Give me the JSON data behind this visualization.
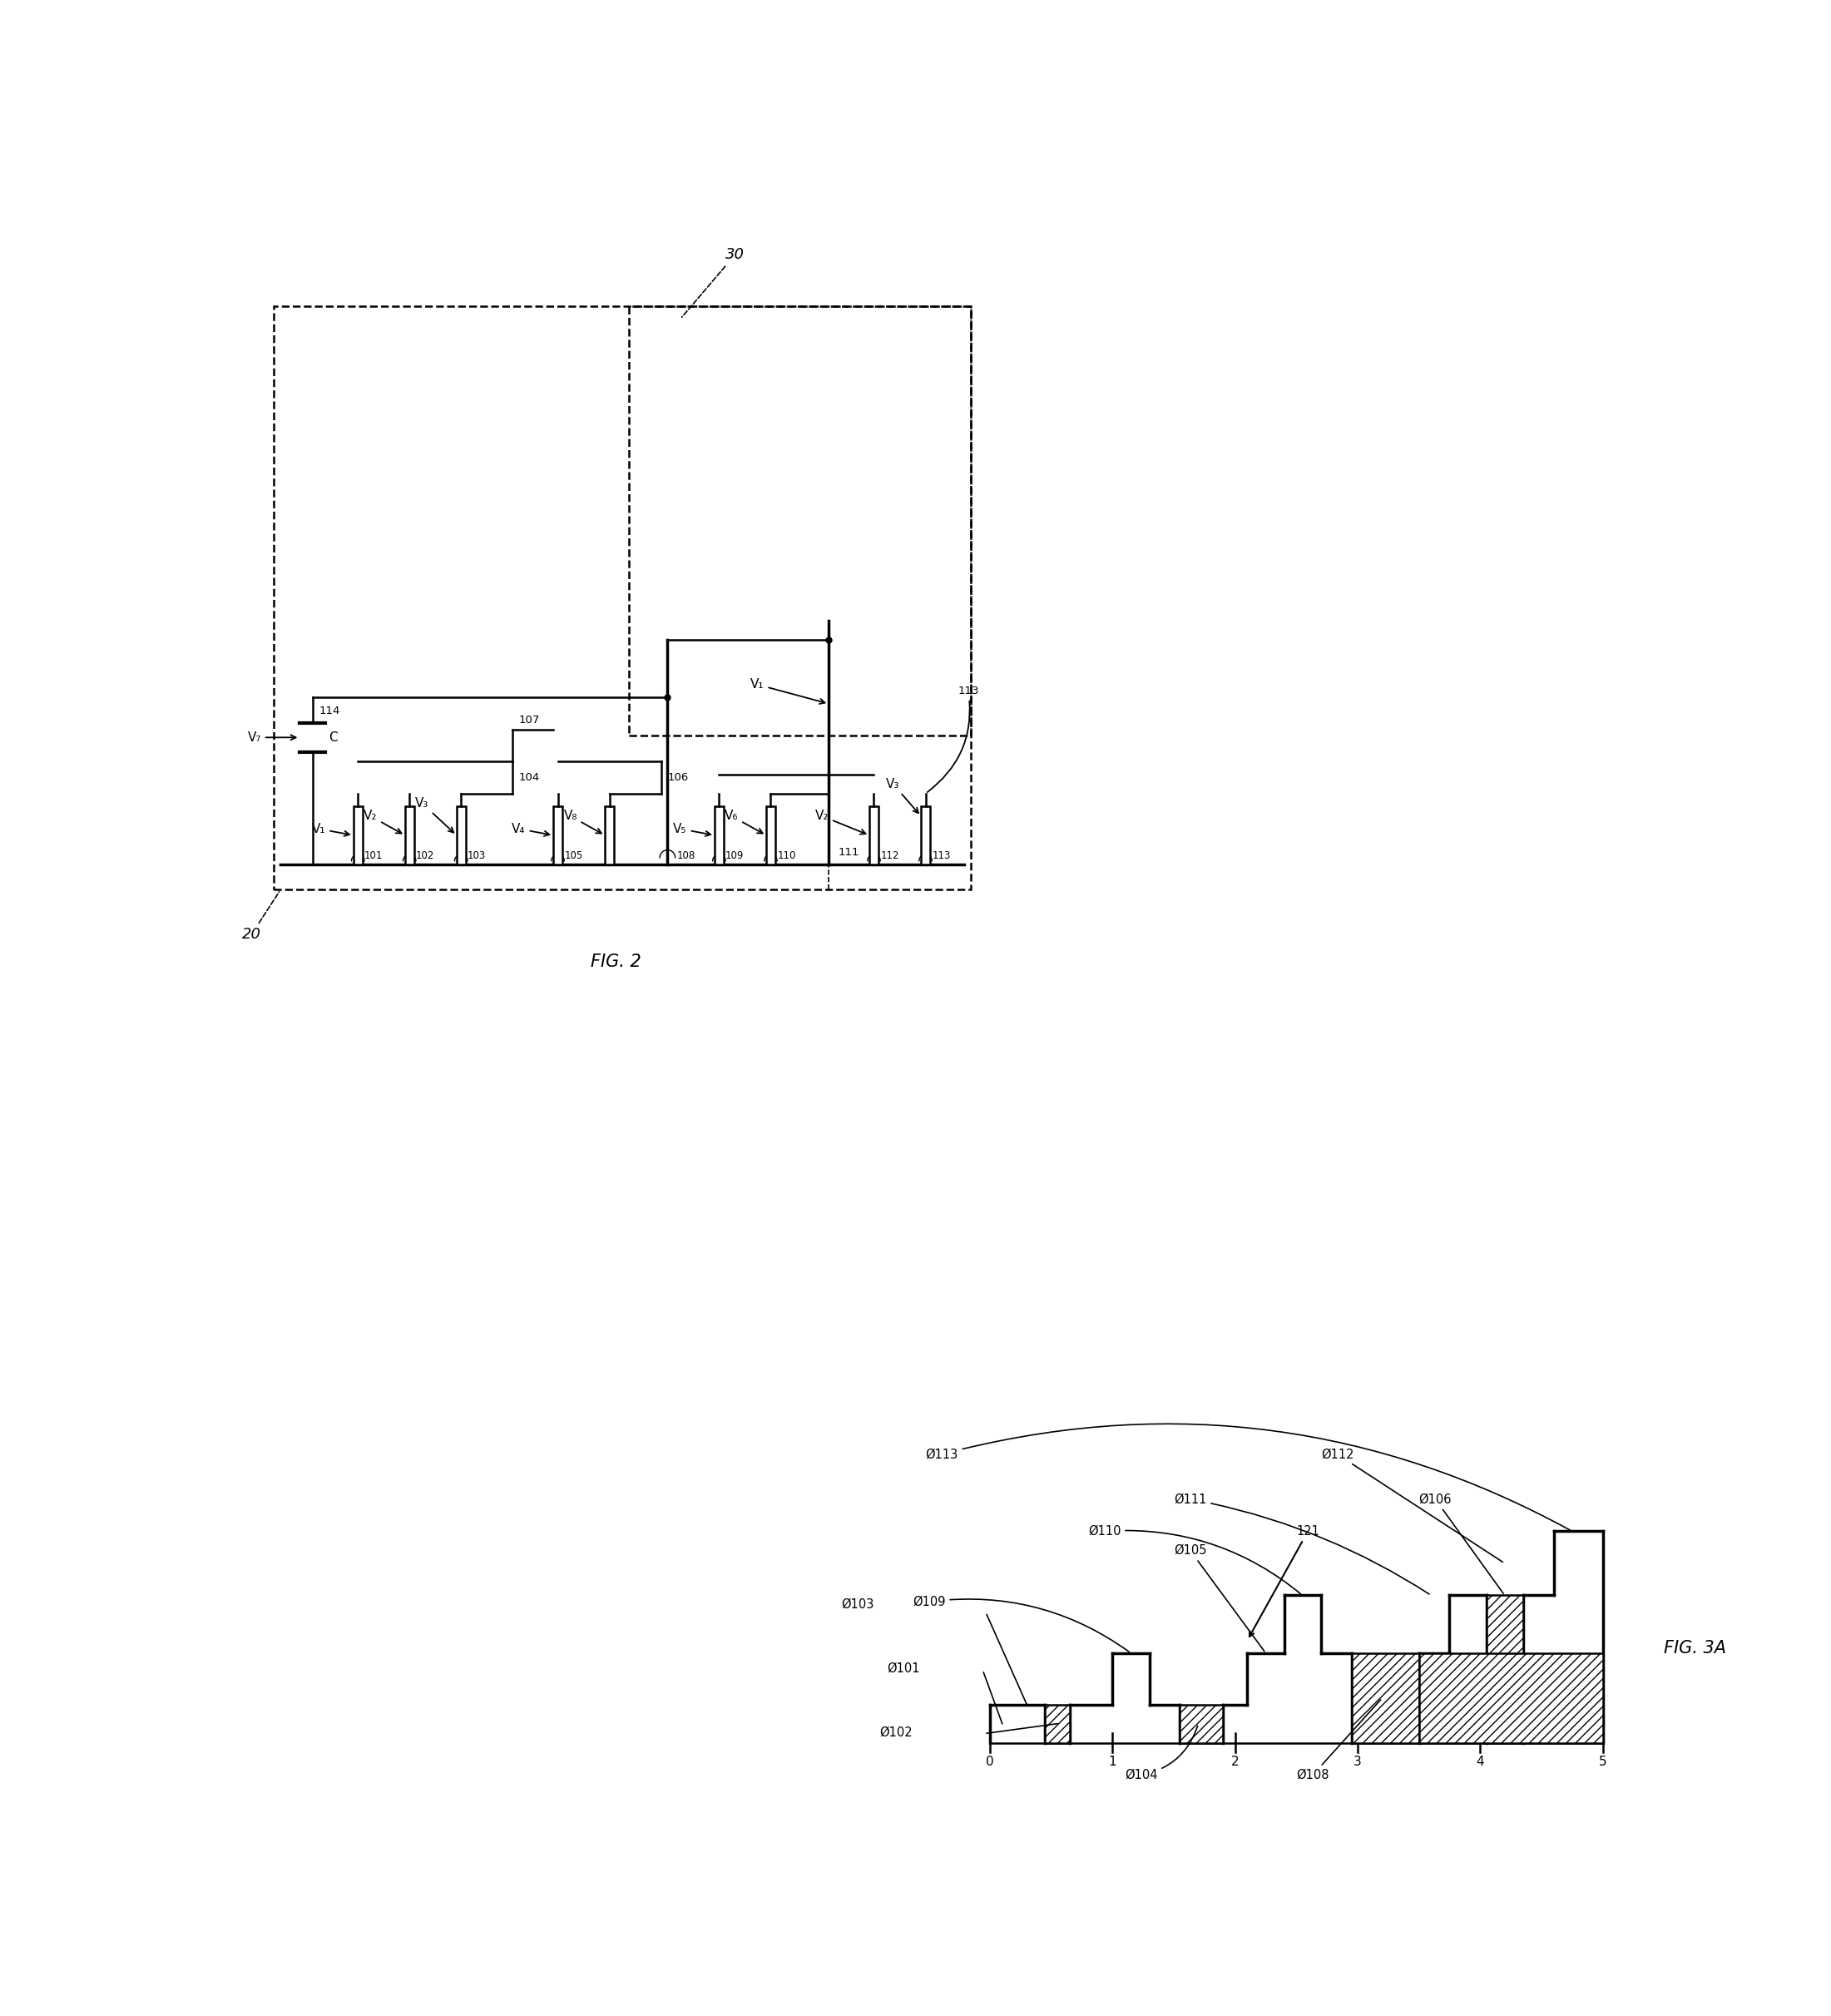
{
  "fig_width": 22.01,
  "fig_height": 24.23,
  "bg_color": "#ffffff",
  "line_color": "#000000",
  "fig2_label": "FIG. 2",
  "fig3a_label": "FIG. 3A",
  "phi": "Ø"
}
